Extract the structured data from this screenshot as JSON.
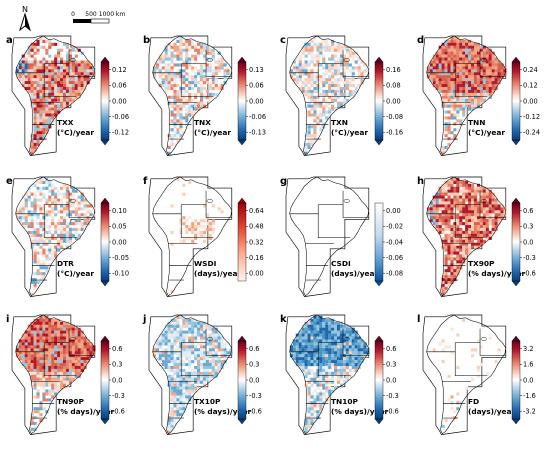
{
  "north_arrow": {
    "label": "N"
  },
  "scale_bar": {
    "ticks": [
      "0",
      "500",
      "1000 km"
    ]
  },
  "colors": {
    "warm_dark": "#b2182b",
    "warm_mid": "#e7806a",
    "warm_light": "#f9d4c4",
    "neutral": "#f7f7f7",
    "cool_light": "#c6ddef",
    "cool_mid": "#5fa2cf",
    "cool_dark": "#2166ac"
  },
  "panels": [
    {
      "letter": "a",
      "index": "TXX",
      "unit": "(°C)/year",
      "cbar_ticks": [
        "0.12",
        "0.06",
        "0.00",
        "-0.06",
        "-0.12"
      ],
      "cbar_type": "diverging",
      "pattern": "warm_south"
    },
    {
      "letter": "b",
      "index": "TNX",
      "unit": "(°C)/year",
      "cbar_ticks": [
        "0.13",
        "0.06",
        "0.00",
        "-0.06",
        "-0.13"
      ],
      "cbar_type": "diverging",
      "pattern": "mixed"
    },
    {
      "letter": "c",
      "index": "TXN",
      "unit": "(°C)/year",
      "cbar_ticks": [
        "0.16",
        "0.08",
        "0.00",
        "-0.08",
        "-0.16"
      ],
      "cbar_type": "diverging",
      "pattern": "mixed_light"
    },
    {
      "letter": "d",
      "index": "TNN",
      "unit": "(°C)/year",
      "cbar_ticks": [
        "0.24",
        "0.12",
        "0.00",
        "-0.12",
        "-0.24"
      ],
      "cbar_type": "diverging",
      "pattern": "warm_north"
    },
    {
      "letter": "e",
      "index": "DTR",
      "unit": "(°C)/year",
      "cbar_ticks": [
        "0.10",
        "0.05",
        "0.00",
        "-0.05",
        "-0.10"
      ],
      "cbar_type": "diverging",
      "pattern": "mixed"
    },
    {
      "letter": "f",
      "index": "WSDI",
      "unit": "(days)/year",
      "cbar_ticks": [
        "0.64",
        "0.48",
        "0.32",
        "0.16",
        "0.00"
      ],
      "cbar_type": "reds",
      "pattern": "sparse_center"
    },
    {
      "letter": "g",
      "index": "CSDI",
      "unit": "(days)/year",
      "cbar_ticks": [
        "0.00",
        "-0.02",
        "-0.04",
        "-0.06",
        "-0.08"
      ],
      "cbar_type": "blues",
      "pattern": "empty"
    },
    {
      "letter": "h",
      "index": "TX90P",
      "unit": "(% days)/year",
      "cbar_ticks": [
        "0.6",
        "0.3",
        "0.0",
        "-0.3",
        "-0.6"
      ],
      "cbar_type": "diverging",
      "pattern": "warm_all"
    },
    {
      "letter": "i",
      "index": "TN90P",
      "unit": "(% days)/year",
      "cbar_ticks": [
        "0.6",
        "0.3",
        "0.0",
        "-0.3",
        "-0.6"
      ],
      "cbar_type": "diverging",
      "pattern": "warm_north"
    },
    {
      "letter": "j",
      "index": "TX10P",
      "unit": "(% days)/year",
      "cbar_ticks": [
        "0.6",
        "0.3",
        "0.0",
        "-0.3",
        "-0.6"
      ],
      "cbar_type": "diverging",
      "pattern": "cool_light"
    },
    {
      "letter": "k",
      "index": "TN10P",
      "unit": "(% days)/year",
      "cbar_ticks": [
        "0.6",
        "0.3",
        "0.0",
        "-0.3",
        "-0.6"
      ],
      "cbar_type": "diverging",
      "pattern": "cool_north"
    },
    {
      "letter": "l",
      "index": "FD",
      "unit": "(days)/year",
      "cbar_ticks": [
        "3.2",
        "1.6",
        "0.0",
        "-1.6",
        "-3.2"
      ],
      "cbar_type": "diverging",
      "pattern": "sparse_south"
    }
  ]
}
